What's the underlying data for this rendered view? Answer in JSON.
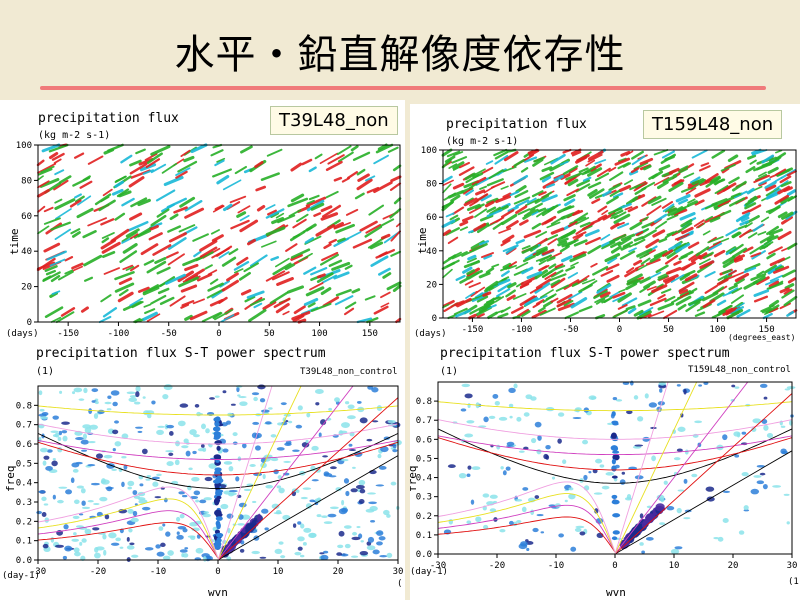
{
  "slide": {
    "title": "水平・鉛直解像度依存性"
  },
  "colors": {
    "rule": "#f07a7a",
    "hov_red": "#e02020",
    "hov_green": "#28b028",
    "hov_cyan": "#19b9d8",
    "spec_dark": "#1b2a8c",
    "spec_mid": "#2d7fd9",
    "spec_light": "#8be3ea"
  },
  "chart_data": [
    {
      "type": "heatmap",
      "label": "T39L48_non",
      "title": "precipitation flux",
      "subtitle": "(kg m-2 s-1)",
      "ylabel": "time",
      "xunit_left": "(days)",
      "xlim": [
        -180,
        180
      ],
      "ylim": [
        0,
        100
      ],
      "xticks": [
        -150,
        -100,
        -50,
        0,
        50,
        100,
        150
      ],
      "yticks": [
        0,
        20,
        40,
        60,
        80,
        100
      ],
      "seed": 11
    },
    {
      "type": "heatmap",
      "label": "T159L48_non",
      "title": "precipitation flux",
      "subtitle": "(kg m-2 s-1)",
      "ylabel": "time",
      "xunit_left": "(days)",
      "xunit_right": "(degrees_east)",
      "xlim": [
        -180,
        180
      ],
      "ylim": [
        0,
        100
      ],
      "xticks": [
        -150,
        -100,
        -50,
        0,
        50,
        100,
        150
      ],
      "yticks": [
        0,
        20,
        40,
        60,
        80,
        100
      ],
      "seed": 29
    },
    {
      "type": "heatmap",
      "title": "precipitation flux S-T power spectrum",
      "subtitle": "(1)",
      "tag": "T39L48_non_control",
      "ylabel": "freq",
      "xlabel": "wvn",
      "xunit_left": "(day-1)",
      "xunit_right": "(",
      "xlim": [
        -30,
        30
      ],
      "ylim": [
        0,
        0.9
      ],
      "xticks": [
        -30,
        -20,
        -10,
        0,
        10,
        20,
        30
      ],
      "yticks": [
        0,
        0.1,
        0.2,
        0.3,
        0.4,
        0.5,
        0.6,
        0.7,
        0.8
      ],
      "seed": 41
    },
    {
      "type": "heatmap",
      "title": "precipitation flux S-T power spectrum",
      "subtitle": "(1)",
      "tag": "T159L48_non_control",
      "ylabel": "freq",
      "xlabel": "wvn",
      "xunit_left": "(day-1)",
      "xunit_right": "(1",
      "xlim": [
        -30,
        30
      ],
      "ylim": [
        0,
        0.9
      ],
      "xticks": [
        -30,
        -20,
        -10,
        0,
        10,
        20,
        30
      ],
      "yticks": [
        0,
        0.1,
        0.2,
        0.3,
        0.4,
        0.5,
        0.6,
        0.7,
        0.8
      ],
      "seed": 53
    }
  ]
}
